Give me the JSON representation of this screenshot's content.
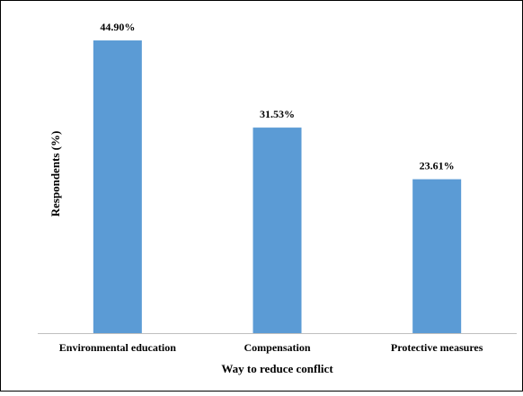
{
  "chart_data": {
    "type": "bar",
    "title": "",
    "xlabel": "Way to reduce conflict",
    "ylabel": "Respondents (%)",
    "categories": [
      "Environmental education",
      "Compensation",
      "Protective measures"
    ],
    "values": [
      44.9,
      31.53,
      23.61
    ],
    "data_labels": [
      "44.90%",
      "31.53%",
      "23.61%"
    ],
    "ylim": [
      0,
      50
    ],
    "bar_color": "#5b9bd5",
    "grid": false,
    "legend": "none"
  }
}
